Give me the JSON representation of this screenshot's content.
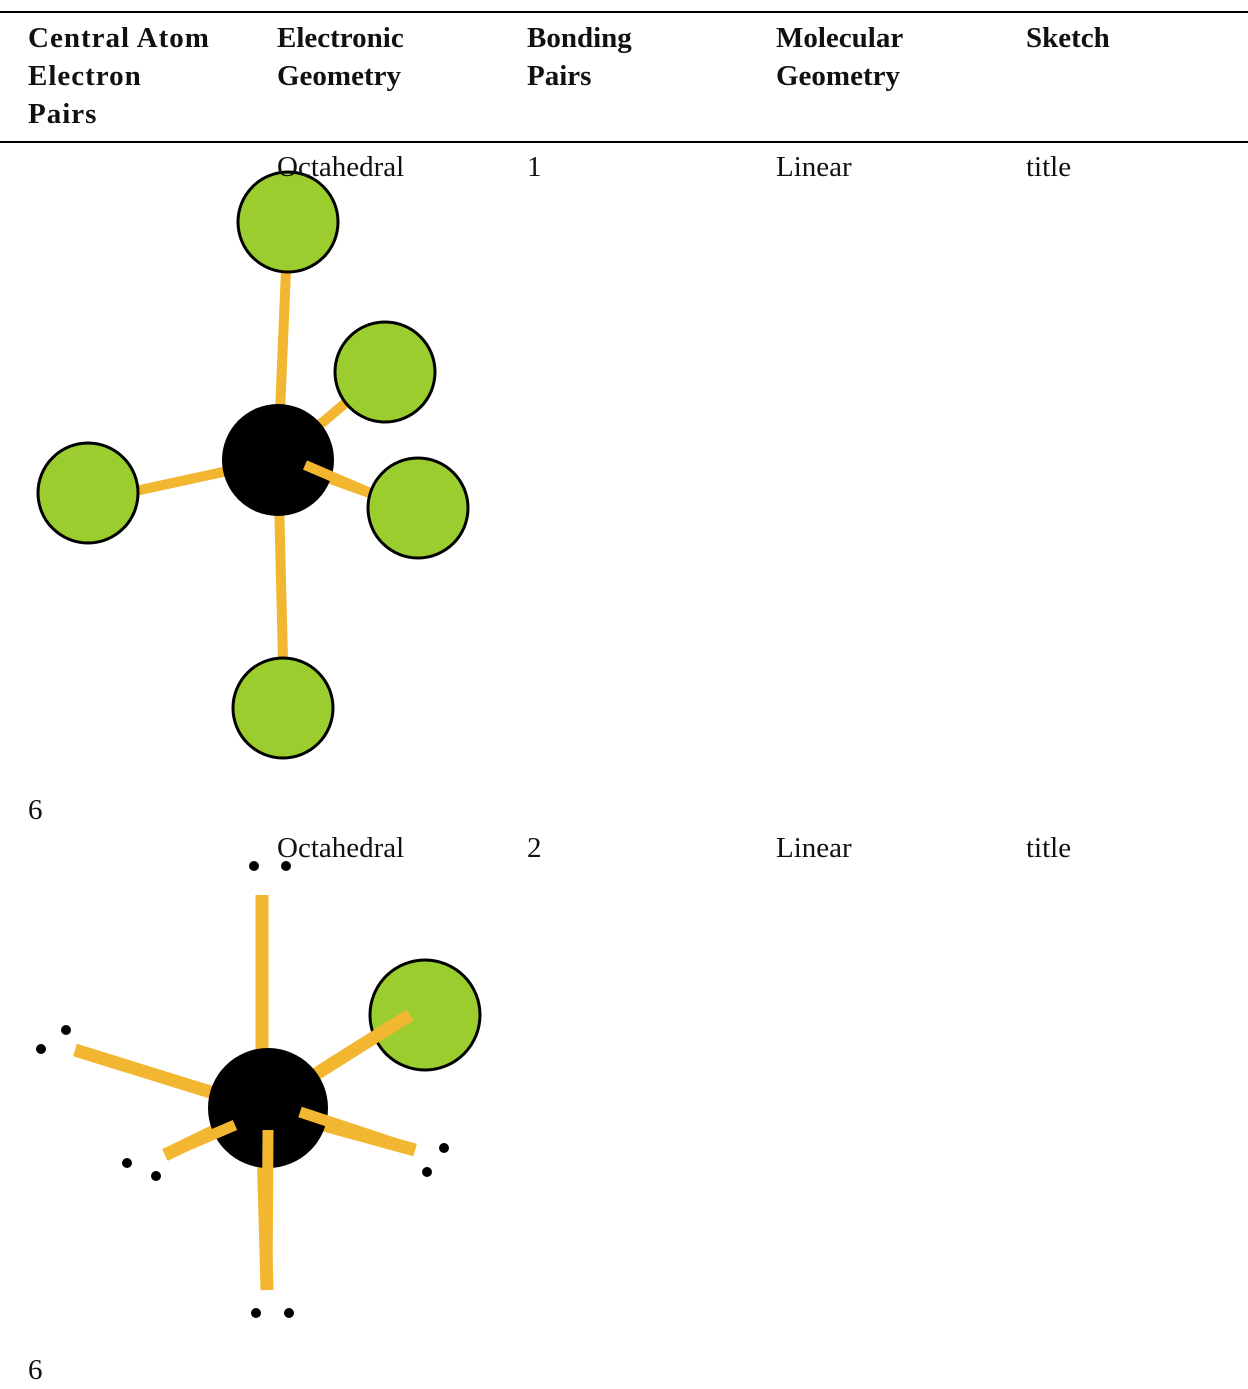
{
  "table": {
    "headers": [
      "Central Atom Electron Pairs",
      "Electronic Geometry",
      "Bonding Pairs",
      "Molecular Geometry",
      "Sketch"
    ],
    "rows": [
      [
        "6",
        "Octahedral",
        "1",
        "Linear",
        "title"
      ],
      [
        "6",
        "Octahedral",
        "2",
        "Linear",
        "title"
      ]
    ]
  }
}
